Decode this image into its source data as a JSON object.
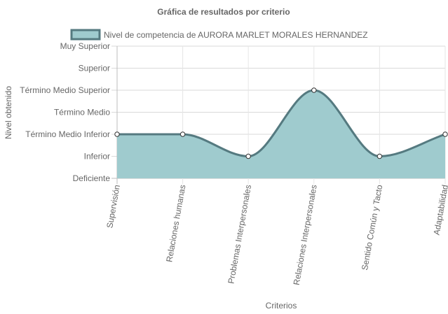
{
  "chart_data": {
    "type": "area",
    "title": "Gráfica de resultados por criterio",
    "xlabel": "Criterios",
    "ylabel": "Nivel obtenido",
    "categories": [
      "Supervisión",
      "Relaciones humanas",
      "Problemas Interpersonales",
      "Relaciones Interpersonales",
      "Sentido Común y Tacto",
      "Adaptabilidad"
    ],
    "y_levels": [
      "Deficiente",
      "Inferior",
      "Término Medio Inferior",
      "Término Medio",
      "Término Medio Superior",
      "Superior",
      "Muy Superior"
    ],
    "ylim": [
      0,
      6
    ],
    "grid": true,
    "legend_position": "top",
    "series": [
      {
        "name": "Nivel de competencia de AURORA MARLET MORALES HERNANDEZ",
        "values": [
          2,
          2,
          1,
          4,
          1,
          2
        ],
        "fill_color": "#9fcbce",
        "line_color": "#557a80"
      }
    ]
  }
}
